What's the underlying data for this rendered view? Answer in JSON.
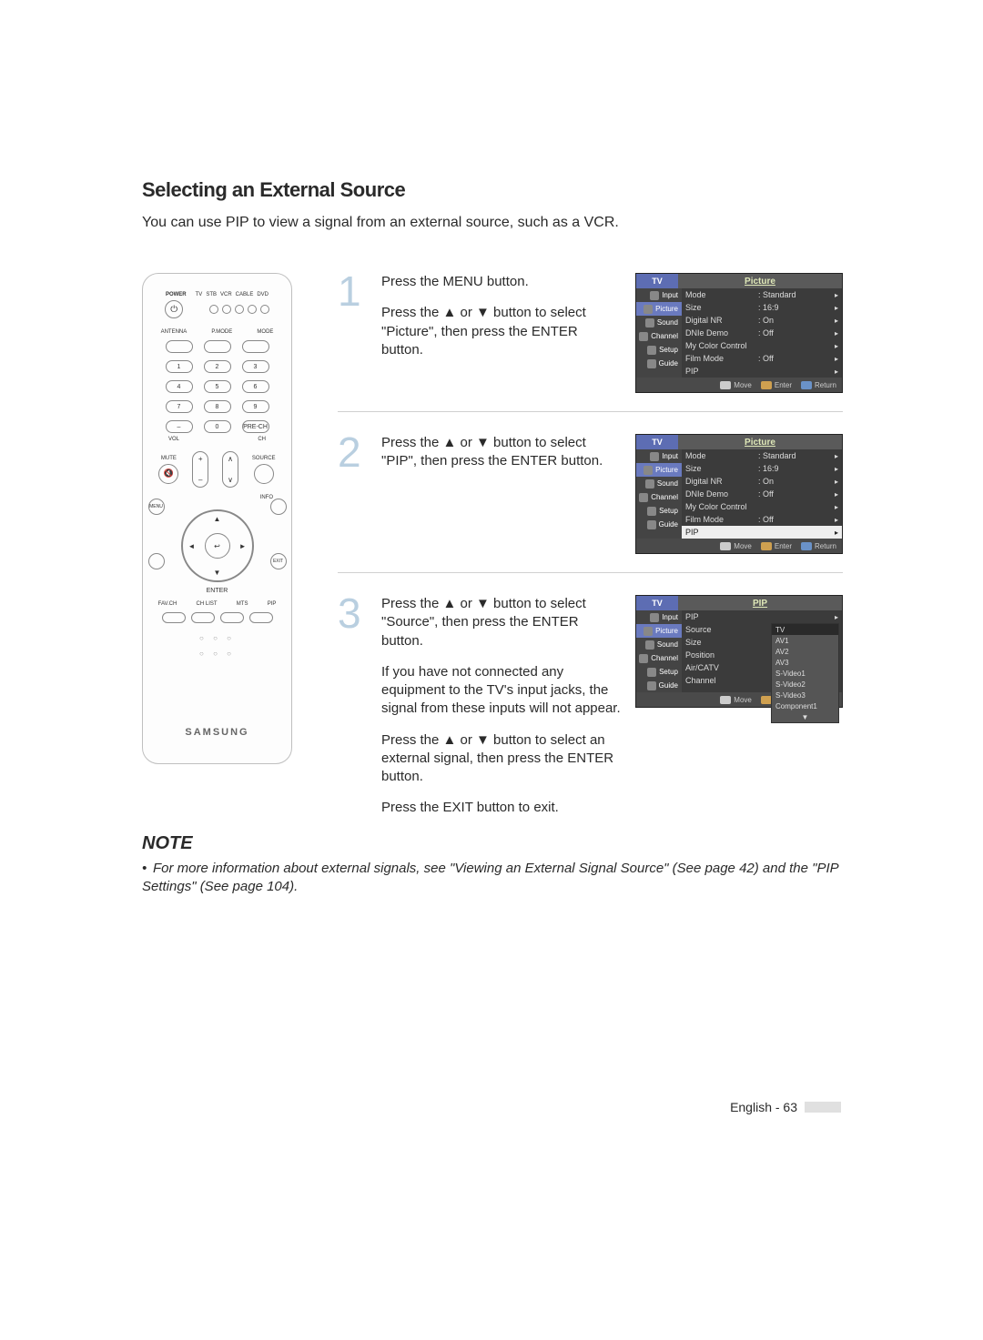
{
  "heading": "Selecting an External Source",
  "intro": "You can use PIP to view a signal from an external source, such as a VCR.",
  "remote": {
    "power_label": "POWER",
    "top_labels": [
      "TV",
      "STB",
      "VCR",
      "CABLE",
      "DVD"
    ],
    "row_labels": [
      "ANTENNA",
      "P.MODE",
      "MODE"
    ],
    "numbers": [
      "1",
      "2",
      "3",
      "4",
      "5",
      "6",
      "7",
      "8",
      "9",
      "0"
    ],
    "prech": "PRE-CH",
    "dash": "–",
    "vol": "VOL",
    "ch": "CH",
    "mute": "MUTE",
    "source": "SOURCE",
    "info": "INFO",
    "enter": "ENTER",
    "bottom_row_labels": [
      "FAV.CH",
      "CH LIST",
      "MTS",
      "PIP"
    ],
    "brand": "SAMSUNG"
  },
  "steps": [
    {
      "num": "1",
      "text_lines": [
        "Press the MENU button.",
        "Press the ▲ or ▼ button to select \"Picture\", then press the ENTER button."
      ],
      "osd": {
        "title": "Picture",
        "tv_tab": "TV",
        "side": [
          "Input",
          "Picture",
          "Sound",
          "Channel",
          "Setup",
          "Guide"
        ],
        "side_selected": 1,
        "rows": [
          {
            "label": "Mode",
            "val": ": Standard"
          },
          {
            "label": "Size",
            "val": ": 16:9"
          },
          {
            "label": "Digital NR",
            "val": ": On"
          },
          {
            "label": "DNIe Demo",
            "val": ": Off"
          },
          {
            "label": "My Color Control",
            "val": ""
          },
          {
            "label": "Film Mode",
            "val": ": Off"
          },
          {
            "label": "PIP",
            "val": ""
          }
        ],
        "row_selected": -1,
        "footer": {
          "move": "Move",
          "enter": "Enter",
          "return": "Return"
        }
      }
    },
    {
      "num": "2",
      "text_lines": [
        "Press the ▲ or ▼ button to select \"PIP\", then press the ENTER button."
      ],
      "osd": {
        "title": "Picture",
        "tv_tab": "TV",
        "side": [
          "Input",
          "Picture",
          "Sound",
          "Channel",
          "Setup",
          "Guide"
        ],
        "side_selected": 1,
        "rows": [
          {
            "label": "Mode",
            "val": ": Standard"
          },
          {
            "label": "Size",
            "val": ": 16:9"
          },
          {
            "label": "Digital NR",
            "val": ": On"
          },
          {
            "label": "DNIe Demo",
            "val": ": Off"
          },
          {
            "label": "My Color Control",
            "val": ""
          },
          {
            "label": "Film Mode",
            "val": ": Off"
          },
          {
            "label": "PIP",
            "val": ""
          }
        ],
        "row_selected": 6,
        "footer": {
          "move": "Move",
          "enter": "Enter",
          "return": "Return"
        }
      }
    },
    {
      "num": "3",
      "text_lines": [
        "Press the ▲ or ▼ button to select \"Source\", then press the ENTER button.",
        "If you have not connected any equipment to the TV's input jacks, the signal from these inputs will not appear.",
        "Press the ▲ or ▼ button to select an external signal, then press the ENTER button.",
        "Press the EXIT button to exit."
      ],
      "osd": {
        "title": "PIP",
        "tv_tab": "TV",
        "side": [
          "Input",
          "Picture",
          "Sound",
          "Channel",
          "Setup",
          "Guide"
        ],
        "side_selected": 1,
        "rows": [
          {
            "label": "PIP",
            "val": ""
          },
          {
            "label": "Source",
            "val": ""
          },
          {
            "label": "Size",
            "val": ""
          },
          {
            "label": "Position",
            "val": ""
          },
          {
            "label": "Air/CATV",
            "val": ""
          },
          {
            "label": "Channel",
            "val": ""
          }
        ],
        "row_selected": -1,
        "submenu": [
          "TV",
          "AV1",
          "AV2",
          "AV3",
          "S-Video1",
          "S-Video2",
          "S-Video3",
          "Component1",
          "▼"
        ],
        "submenu_selected": 0,
        "footer": {
          "move": "Move",
          "enter": "Enter",
          "return": "Return"
        }
      }
    }
  ],
  "note": {
    "heading": "NOTE",
    "body": "For more information about external signals, see \"Viewing an External Signal Source\" (See page 42) and the \"PIP Settings\" (See page 104)."
  },
  "footer_text": "English - 63",
  "colors": {
    "step_num": "#b9cfe0",
    "osd_bg": "#3b3b3b",
    "osd_tab": "#5d6db3",
    "osd_title": "#dfe8b8",
    "footer_move_icon": "#cccccc",
    "footer_enter_icon": "#cfa050",
    "footer_return_icon": "#6a92c8"
  }
}
